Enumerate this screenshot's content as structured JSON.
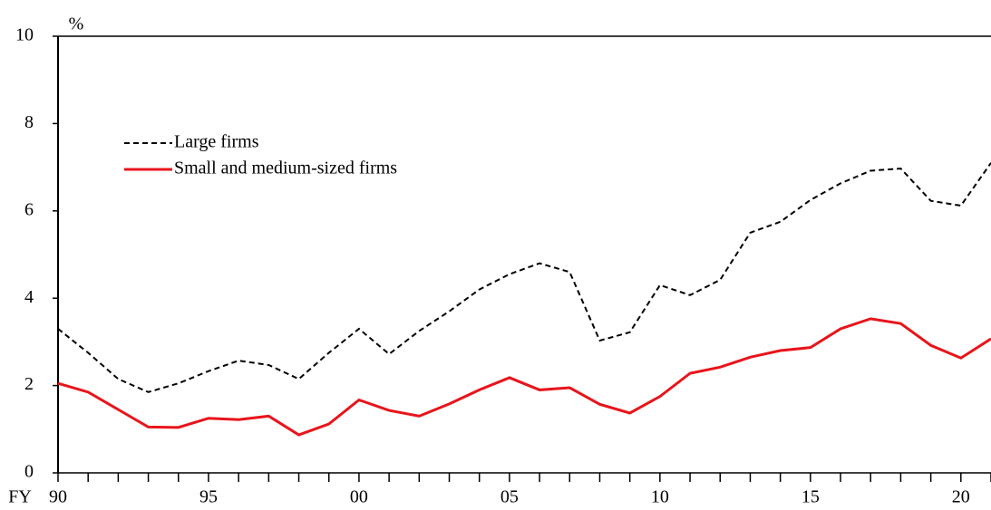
{
  "chart_data": {
    "type": "line",
    "y_unit": "%",
    "x_label": "FY",
    "categories": [
      "90",
      null,
      null,
      null,
      null,
      "95",
      null,
      null,
      null,
      null,
      "00",
      null,
      null,
      null,
      null,
      "05",
      null,
      null,
      null,
      null,
      "10",
      null,
      null,
      null,
      null,
      "15",
      null,
      null,
      null,
      null,
      "20",
      null
    ],
    "series": [
      {
        "name": "Large firms",
        "color": "#000000",
        "dash": "dashed",
        "values": [
          3.3,
          2.75,
          2.15,
          1.85,
          2.05,
          2.33,
          2.57,
          2.47,
          2.15,
          2.75,
          3.3,
          2.72,
          3.25,
          3.7,
          4.2,
          4.55,
          4.8,
          4.6,
          3.03,
          3.22,
          4.3,
          4.07,
          4.42,
          5.5,
          5.75,
          6.25,
          6.63,
          6.92,
          6.97,
          6.23,
          6.12,
          7.1
        ]
      },
      {
        "name": "Small and medium-sized firms",
        "color": "#e8141b",
        "dash": "solid",
        "values": [
          2.05,
          1.85,
          1.45,
          1.05,
          1.04,
          1.25,
          1.22,
          1.3,
          0.87,
          1.12,
          1.67,
          1.43,
          1.3,
          1.58,
          1.9,
          2.18,
          1.9,
          1.95,
          1.57,
          1.37,
          1.75,
          2.28,
          2.42,
          2.65,
          2.8,
          2.87,
          3.3,
          3.53,
          3.42,
          2.92,
          2.63,
          3.07
        ]
      }
    ],
    "ylim": [
      0,
      10
    ],
    "yticks": [
      0,
      2,
      4,
      6,
      8,
      10
    ],
    "legend": "upper left"
  }
}
